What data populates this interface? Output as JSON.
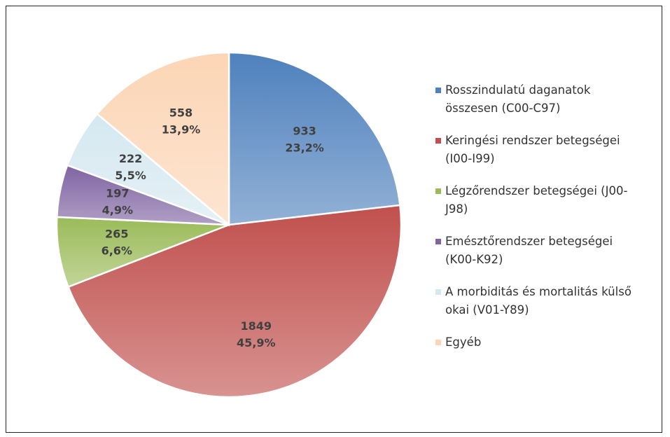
{
  "chart_data": {
    "type": "pie",
    "categories": [
      "Rosszindulatú daganatok összesen (C00-C97)",
      "Keringési rendszer betegségei (I00-I99)",
      "Légzőrendszer betegségei (J00-J98)",
      "Emésztőrendszer betegségei (K00-K92)",
      "A morbiditás és mortalitás külső okai (V01-Y89)",
      "Egyéb"
    ],
    "values": [
      933,
      1849,
      265,
      197,
      222,
      558
    ],
    "percentages": [
      {
        "value": 23.2,
        "label": "23,2%"
      },
      {
        "value": 45.9,
        "label": "45,9%"
      },
      {
        "value": 6.6,
        "label": "6,6%"
      },
      {
        "value": 4.9,
        "label": "4,9%"
      },
      {
        "value": 5.5,
        "label": "5,5%"
      },
      {
        "value": 13.9,
        "label": "13,9%"
      }
    ],
    "colors": [
      "#4f81bd",
      "#c0504d",
      "#9bbb59",
      "#8064a2",
      "#d5e8f0",
      "#fcd5b5"
    ],
    "legend": "right"
  }
}
